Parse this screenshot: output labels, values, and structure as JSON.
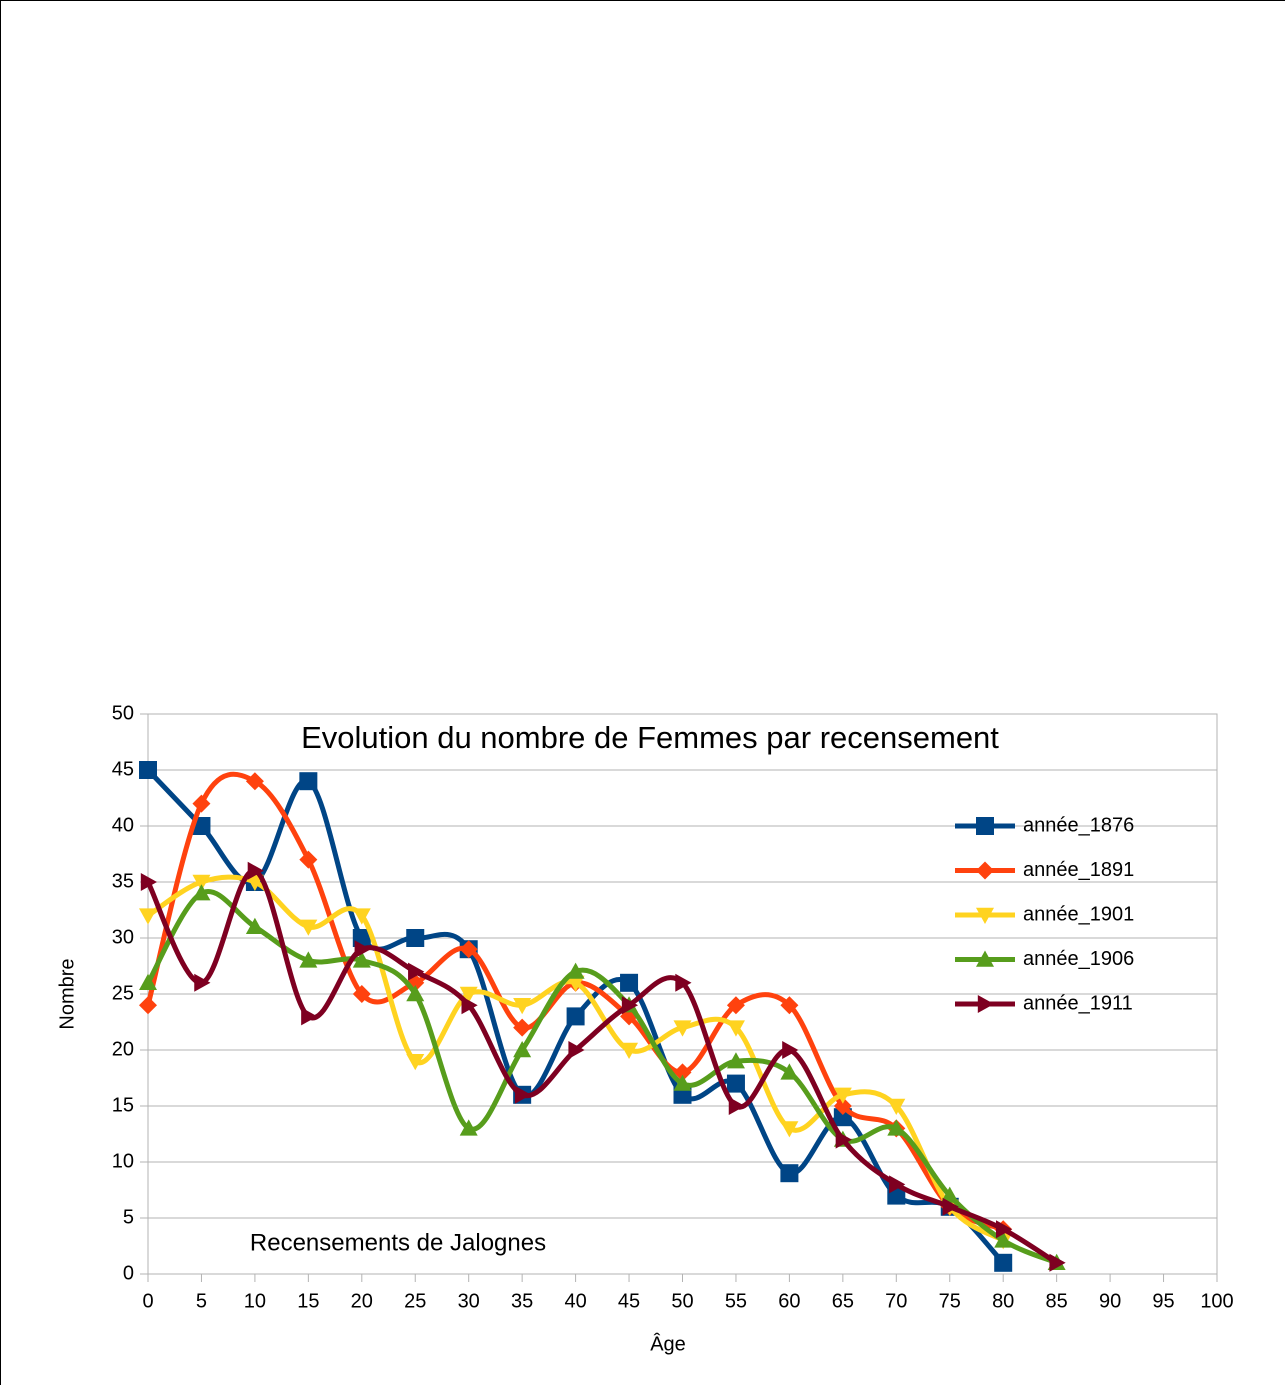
{
  "chart_data": {
    "type": "line",
    "title": "Evolution du nombre de Femmes par recensement",
    "annotation": "Recensements de Jalognes",
    "x_label": "Âge",
    "y_label": "Nombre",
    "x": [
      0,
      5,
      10,
      15,
      20,
      25,
      30,
      35,
      40,
      45,
      50,
      55,
      60,
      65,
      70,
      75,
      80,
      85
    ],
    "xlim": [
      0,
      100
    ],
    "xticks": [
      0,
      5,
      10,
      15,
      20,
      25,
      30,
      35,
      40,
      45,
      50,
      55,
      60,
      65,
      70,
      75,
      80,
      85,
      90,
      95,
      100
    ],
    "ylim": [
      0,
      50
    ],
    "yticks": [
      0,
      5,
      10,
      15,
      20,
      25,
      30,
      35,
      40,
      45,
      50
    ],
    "grid": true,
    "smooth": true,
    "legend": "right",
    "series": [
      {
        "name": "année_1876",
        "color": "#004586",
        "marker": "square",
        "values": [
          45,
          40,
          35,
          44,
          30,
          30,
          29,
          16,
          23,
          26,
          16,
          17,
          9,
          14,
          7,
          6,
          1,
          null
        ]
      },
      {
        "name": "année_1891",
        "color": "#ff420e",
        "marker": "diamond",
        "values": [
          24,
          42,
          44,
          37,
          25,
          26,
          29,
          22,
          26,
          23,
          18,
          24,
          24,
          15,
          13,
          6,
          4,
          null
        ]
      },
      {
        "name": "année_1901",
        "color": "#ffd320",
        "marker": "triangle-down",
        "values": [
          32,
          35,
          35,
          31,
          32,
          19,
          25,
          24,
          26,
          20,
          22,
          22,
          13,
          16,
          15,
          6,
          3,
          null
        ]
      },
      {
        "name": "année_1906",
        "color": "#579d1c",
        "marker": "triangle-up",
        "values": [
          26,
          34,
          31,
          28,
          28,
          25,
          13,
          20,
          27,
          24,
          17,
          19,
          18,
          12,
          13,
          7,
          3,
          1
        ]
      },
      {
        "name": "année_1911",
        "color": "#7e0021",
        "marker": "triangle-right",
        "values": [
          35,
          26,
          36,
          23,
          29,
          27,
          24,
          16,
          20,
          24,
          26,
          15,
          20,
          12,
          8,
          6,
          4,
          1
        ]
      }
    ]
  }
}
